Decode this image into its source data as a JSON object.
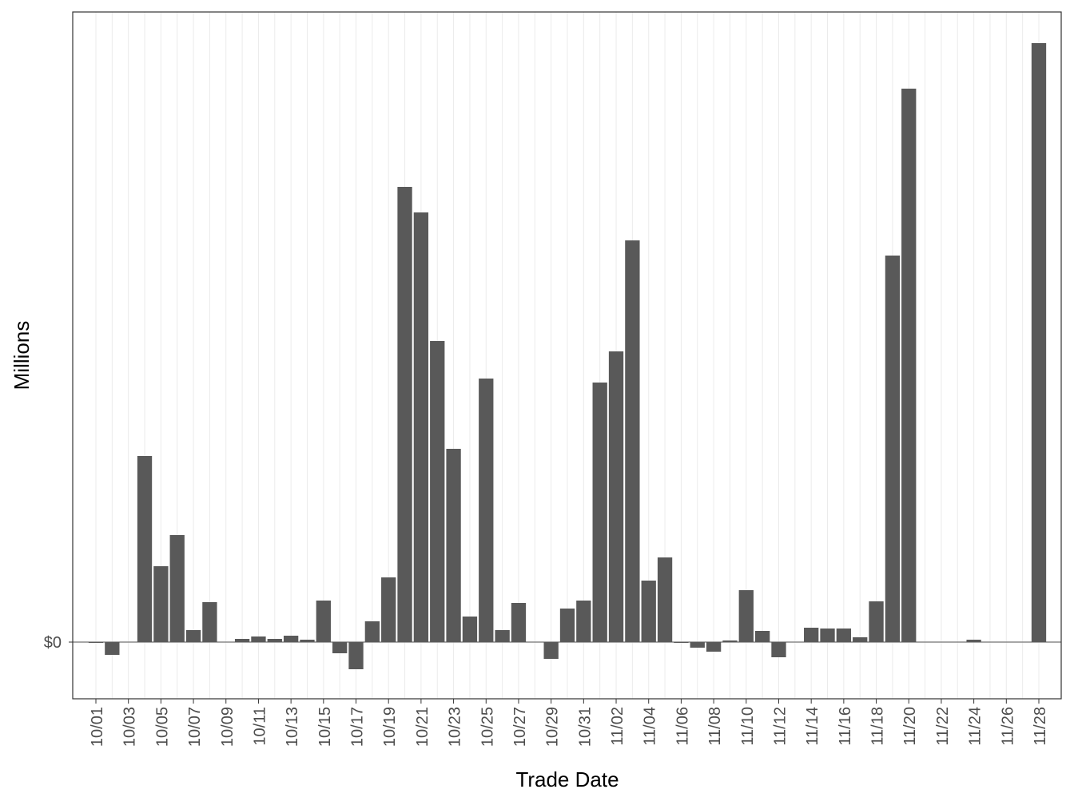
{
  "chart_data": {
    "type": "bar",
    "x_label": "Trade Date",
    "y_label": "Millions",
    "categories": [
      "10/01",
      null,
      "10/03",
      null,
      "10/05",
      null,
      "10/07",
      null,
      "10/09",
      null,
      "10/11",
      null,
      "10/13",
      null,
      "10/15",
      null,
      "10/17",
      null,
      "10/19",
      null,
      "10/21",
      null,
      "10/23",
      null,
      "10/25",
      null,
      "10/27",
      null,
      "10/29",
      null,
      "10/31",
      null,
      "11/02",
      null,
      "11/04",
      null,
      "11/06",
      null,
      "11/08",
      null,
      "11/10",
      null,
      "11/12",
      null,
      "11/14",
      null,
      "11/16",
      null,
      "11/18",
      null,
      "11/20",
      null,
      "11/22",
      null,
      "11/24",
      null,
      "11/26",
      null,
      "11/28"
    ],
    "values": [
      -0.1,
      -1.6,
      0,
      23.3,
      9.5,
      13.4,
      1.5,
      5.0,
      0,
      0.4,
      0.7,
      0.4,
      0.8,
      0.3,
      5.2,
      -1.4,
      -3.4,
      2.6,
      8.1,
      57.0,
      53.8,
      37.7,
      24.2,
      3.2,
      33.0,
      1.5,
      4.9,
      0,
      -2.1,
      4.2,
      5.2,
      32.5,
      36.4,
      50.3,
      7.7,
      10.6,
      -0.1,
      -0.7,
      -1.2,
      0.2,
      6.5,
      1.4,
      -1.9,
      0,
      1.8,
      1.7,
      1.7,
      0.6,
      5.1,
      48.4,
      69.3,
      0,
      0,
      0,
      0.3,
      0,
      0,
      0,
      75.0
    ],
    "color": "#595959",
    "ylim": [
      -7.1,
      78.9
    ],
    "yticks": [
      {
        "value": 0,
        "label": "$0"
      }
    ],
    "grid": true
  }
}
